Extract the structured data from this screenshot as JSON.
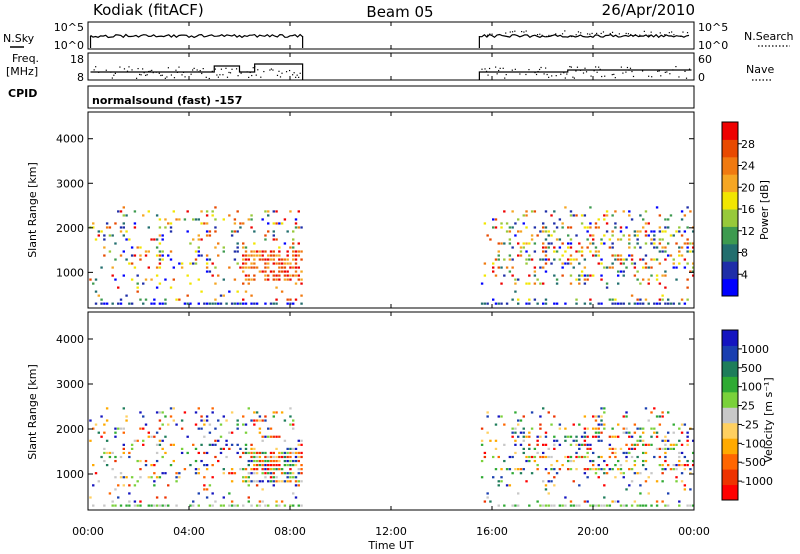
{
  "header": {
    "station": "Kodiak (fitACF)",
    "beam": "Beam 05",
    "date": "26/Apr/2010"
  },
  "top_panel": {
    "left_label": "N.Sky",
    "right_label": "N.Search",
    "left_ticks": [
      "10^5",
      "10^0"
    ],
    "right_ticks": [
      "10^5",
      "10^0"
    ]
  },
  "freq_panel": {
    "left_label_1": "Freq.",
    "left_label_2": "[MHz]",
    "right_label": "Nave",
    "left_ticks": [
      "18",
      "8"
    ],
    "right_ticks": [
      "60",
      "0"
    ]
  },
  "cpid": {
    "label": "CPID",
    "text": "normalsound (fast) -157"
  },
  "chart_data": [
    {
      "type": "heatmap",
      "name": "power",
      "ylabel": "Slant Range [km]",
      "xlabel": "",
      "ylim": [
        200,
        4600
      ],
      "y_ticks": [
        "4000",
        "3000",
        "2000",
        "1000"
      ],
      "colorbar": {
        "label": "Power [dB]",
        "ticks": [
          "28",
          "24",
          "20",
          "16",
          "12",
          "8",
          "4"
        ],
        "colors": [
          "#0000ff",
          "#1e2ea8",
          "#226e6e",
          "#3d9a4f",
          "#97c93a",
          "#f2e600",
          "#f5a623",
          "#f07a10",
          "#e84a00",
          "#ee0000"
        ]
      },
      "data_gaps_ut": [
        [
          8.5,
          15.5
        ]
      ],
      "echo_range_km": [
        300,
        2500
      ]
    },
    {
      "type": "heatmap",
      "name": "velocity",
      "ylabel": "Slant Range [km]",
      "xlabel": "Time UT",
      "ylim": [
        200,
        4600
      ],
      "y_ticks": [
        "4000",
        "3000",
        "2000",
        "1000"
      ],
      "colorbar": {
        "label": "Velocity [m s⁻¹]",
        "ticks": [
          "1000",
          "500",
          "100",
          "25",
          "-25",
          "-100",
          "-500",
          "-1000"
        ],
        "colors": [
          "#ff0000",
          "#ee3300",
          "#ff6600",
          "#ffaa00",
          "#ffd060",
          "#c8c8c8",
          "#7ad13a",
          "#2faa33",
          "#1e7d5a",
          "#1a3fb0",
          "#1414c0"
        ]
      },
      "data_gaps_ut": [
        [
          8.5,
          15.5
        ]
      ],
      "echo_range_km": [
        300,
        2500
      ]
    }
  ],
  "x_axis": {
    "label": "Time UT",
    "ticks": [
      "00:00",
      "04:00",
      "08:00",
      "12:00",
      "16:00",
      "20:00",
      "00:00"
    ]
  }
}
